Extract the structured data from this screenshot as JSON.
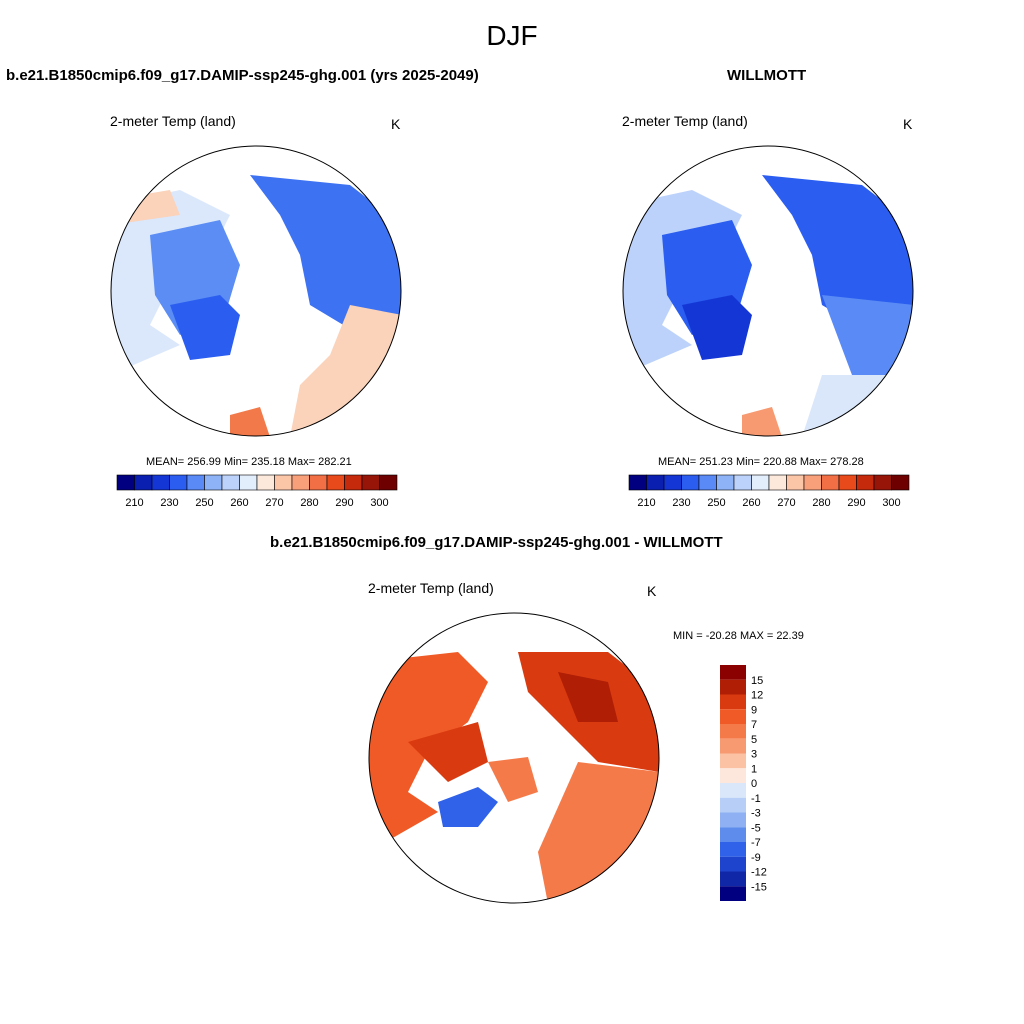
{
  "season_title": "DJF",
  "panels": [
    {
      "title": "b.e21.B1850cmip6.f09_g17.DAMIP-ssp245-ghg.001 (yrs 2025-2049)",
      "variable": "2-meter Temp (land)",
      "units": "K",
      "stats": "MEAN= 256.99  Min= 235.18  Max= 282.21"
    },
    {
      "title": "WILLMOTT",
      "variable": "2-meter Temp (land)",
      "units": "K",
      "stats": "MEAN= 251.23  Min= 220.88  Max= 278.28"
    }
  ],
  "diff_panel": {
    "title": "b.e21.B1850cmip6.f09_g17.DAMIP-ssp245-ghg.001 - WILLMOTT",
    "variable": "2-meter Temp (land)",
    "units": "K",
    "stats": "MIN = -20.28 MAX =  22.39"
  },
  "colorbar_main": {
    "colors": [
      "#000080",
      "#0a1fb0",
      "#1436d4",
      "#2a5df0",
      "#5a8af5",
      "#8fb3f7",
      "#bcd2fa",
      "#e3eefd",
      "#fde8dc",
      "#fbc5a8",
      "#f7a07a",
      "#f26f46",
      "#e84a1c",
      "#c42a0b",
      "#961508",
      "#6e0000"
    ],
    "tick_labels": [
      "210",
      "230",
      "250",
      "260",
      "270",
      "280",
      "290",
      "300"
    ]
  },
  "colorbar_diff": {
    "colors": [
      "#8b0000",
      "#b01e05",
      "#d93a0f",
      "#f05a26",
      "#f57a4a",
      "#f79a72",
      "#fbc3a4",
      "#fde6dc",
      "#dae7fb",
      "#b7cff7",
      "#8fb1f3",
      "#5d8ced",
      "#2f62e8",
      "#1e43cc",
      "#1028a8",
      "#000080"
    ],
    "tick_labels": [
      "15",
      "12",
      "9",
      "7",
      "5",
      "3",
      "1",
      "0",
      "-1",
      "-3",
      "-5",
      "-7",
      "-9",
      "-12",
      "-15"
    ]
  }
}
